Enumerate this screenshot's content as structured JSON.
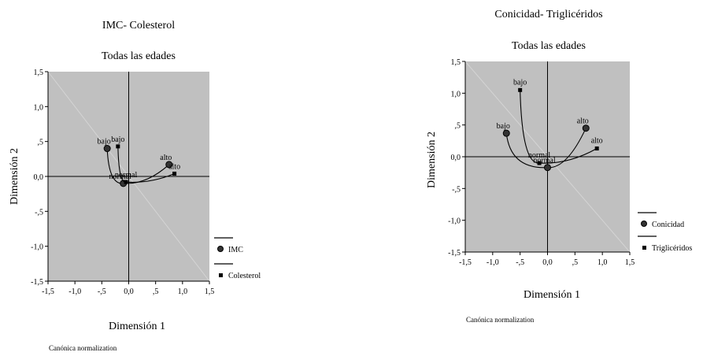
{
  "chart_data": [
    {
      "type": "scatter",
      "title": "IMC- Colesterol",
      "subtitle": "Todas las edades",
      "xlabel": "Dimensión 1",
      "ylabel": "Dimensión 2",
      "footnote": "Canónica normalization",
      "xlim": [
        -1.5,
        1.5
      ],
      "ylim": [
        -1.5,
        1.5
      ],
      "x_tick_labels": [
        "-1,5",
        "-1,0",
        "-,5",
        "0,0",
        ",5",
        "1,0",
        "1,5"
      ],
      "y_tick_labels": [
        "1,5",
        "1,0",
        ",5",
        "0,0",
        "-,5",
        "-1,0",
        "-1,5"
      ],
      "plot_background": "#c0c0c0",
      "legend_position": "bottom-right",
      "series": [
        {
          "name": "IMC",
          "marker": "circle",
          "points": [
            {
              "label": "bajo",
              "x": -0.4,
              "y": 0.4
            },
            {
              "label": "normal",
              "x": -0.1,
              "y": -0.1
            },
            {
              "label": "alto",
              "x": 0.75,
              "y": 0.17
            }
          ]
        },
        {
          "name": "Colesterol",
          "marker": "square",
          "points": [
            {
              "label": "bajo",
              "x": -0.2,
              "y": 0.43
            },
            {
              "label": "normal",
              "x": -0.05,
              "y": -0.08
            },
            {
              "label": "alto",
              "x": 0.85,
              "y": 0.04
            }
          ]
        }
      ]
    },
    {
      "type": "scatter",
      "title": "Conicidad- Triglicéridos",
      "subtitle": "Todas las edades",
      "xlabel": "Dimensión 1",
      "ylabel": "Dimensión 2",
      "footnote": "Canónica normalization",
      "xlim": [
        -1.5,
        1.5
      ],
      "ylim": [
        -1.5,
        1.5
      ],
      "x_tick_labels": [
        "-1,5",
        "-1,0",
        "-,5",
        "0,0",
        ",5",
        "1,0",
        "1,5"
      ],
      "y_tick_labels": [
        "1,5",
        "1,0",
        ",5",
        "0,0",
        "-,5",
        "-1,0",
        "-1,5"
      ],
      "plot_background": "#c0c0c0",
      "legend_position": "bottom-right",
      "series": [
        {
          "name": "Conicidad",
          "marker": "circle",
          "points": [
            {
              "label": "bajo",
              "x": -0.75,
              "y": 0.37
            },
            {
              "label": "normal",
              "x": 0.0,
              "y": -0.17
            },
            {
              "label": "alto",
              "x": 0.7,
              "y": 0.45
            }
          ]
        },
        {
          "name": "Triglicéridos",
          "marker": "square",
          "points": [
            {
              "label": "bajo",
              "x": -0.5,
              "y": 1.05
            },
            {
              "label": "normal",
              "x": -0.15,
              "y": -0.1
            },
            {
              "label": "alto",
              "x": 0.9,
              "y": 0.13
            }
          ]
        }
      ]
    }
  ]
}
